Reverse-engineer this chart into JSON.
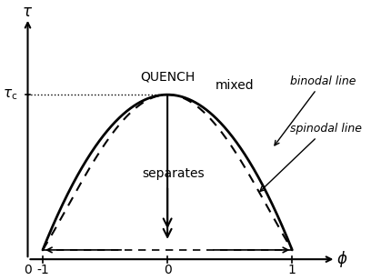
{
  "title": "",
  "xlabel": "ϕ",
  "ylabel": "τ",
  "xlim": [
    -1.22,
    1.42
  ],
  "ylim": [
    -0.1,
    1.18
  ],
  "tc_value": 0.75,
  "background_color": "#ffffff",
  "line_color": "#000000"
}
